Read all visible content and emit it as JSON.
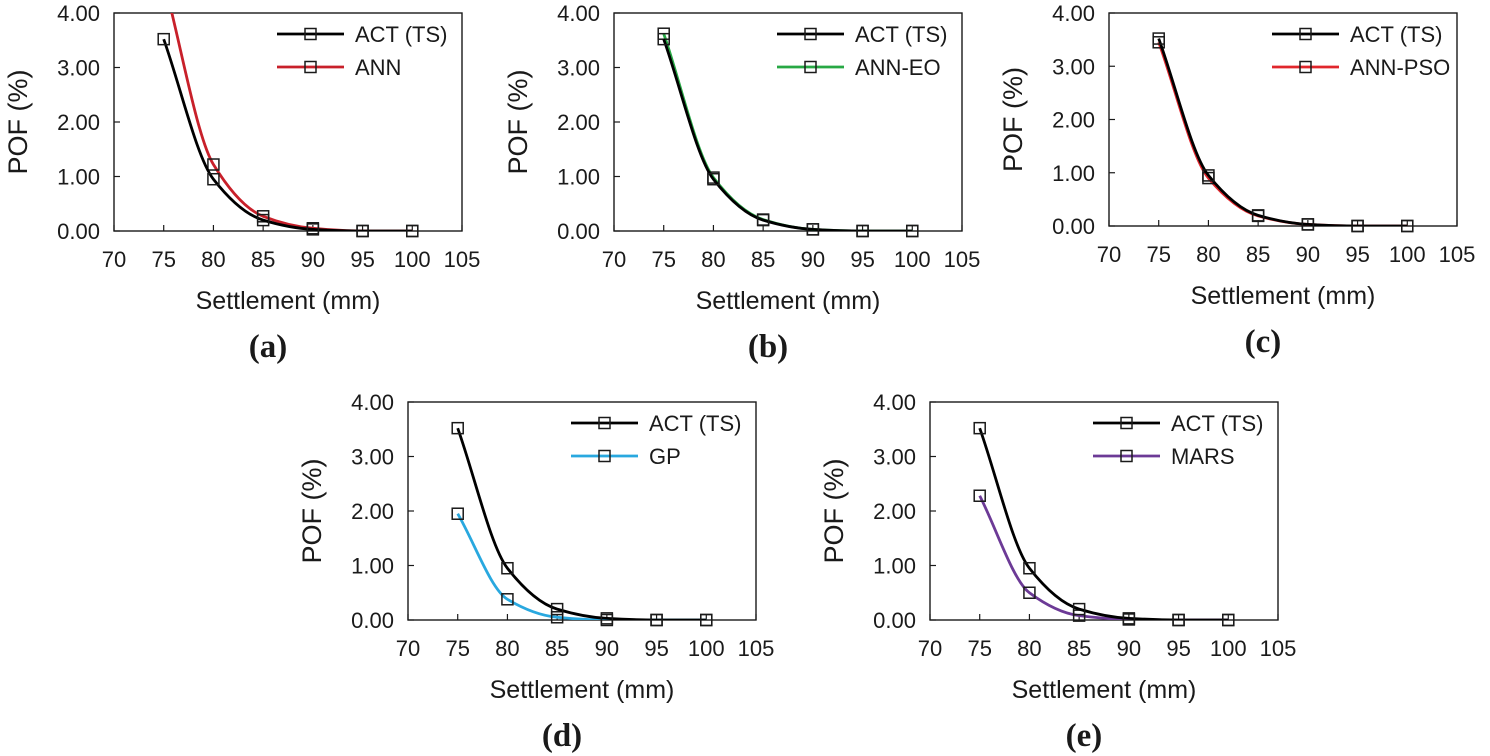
{
  "chart_data": [
    {
      "panel": "(a)",
      "type": "line",
      "xlabel": "Settlement (mm)",
      "ylabel": "POF (%)",
      "xlim": [
        70,
        105
      ],
      "ylim": [
        0,
        4
      ],
      "xticks": [
        "70",
        "75",
        "80",
        "85",
        "90",
        "95",
        "100",
        "105"
      ],
      "yticks": [
        "0.00",
        "1.00",
        "2.00",
        "3.00",
        "4.00"
      ],
      "legend_position": "top-right",
      "x": [
        75,
        80,
        85,
        90,
        95,
        100
      ],
      "series": [
        {
          "name": "ACT (TS)",
          "color": "#000000",
          "values": [
            3.52,
            0.95,
            0.2,
            0.03,
            0.0,
            0.0
          ]
        },
        {
          "name": "ANN",
          "color": "#c8202a",
          "values": [
            4.6,
            1.22,
            0.27,
            0.05,
            0.0,
            0.0
          ]
        }
      ]
    },
    {
      "panel": "(b)",
      "type": "line",
      "xlabel": "Settlement (mm)",
      "ylabel": "POF (%)",
      "xlim": [
        70,
        105
      ],
      "ylim": [
        0,
        4
      ],
      "xticks": [
        "70",
        "75",
        "80",
        "85",
        "90",
        "95",
        "100",
        "105"
      ],
      "yticks": [
        "0.00",
        "1.00",
        "2.00",
        "3.00",
        "4.00"
      ],
      "legend_position": "top-right",
      "x": [
        75,
        80,
        85,
        90,
        95,
        100
      ],
      "series": [
        {
          "name": "ACT (TS)",
          "color": "#000000",
          "values": [
            3.52,
            0.95,
            0.2,
            0.03,
            0.0,
            0.0
          ]
        },
        {
          "name": "ANN-EO",
          "color": "#27a844",
          "values": [
            3.62,
            0.98,
            0.21,
            0.03,
            0.0,
            0.0
          ]
        }
      ]
    },
    {
      "panel": "(c)",
      "type": "line",
      "xlabel": "Settlement (mm)",
      "ylabel": "POF (%)",
      "xlim": [
        70,
        105
      ],
      "ylim": [
        0,
        4
      ],
      "xticks": [
        "70",
        "75",
        "80",
        "85",
        "90",
        "95",
        "100",
        "105"
      ],
      "yticks": [
        "0.00",
        "1.00",
        "2.00",
        "3.00",
        "4.00"
      ],
      "legend_position": "top-right",
      "x": [
        75,
        80,
        85,
        90,
        95,
        100
      ],
      "series": [
        {
          "name": "ACT (TS)",
          "color": "#000000",
          "values": [
            3.52,
            0.95,
            0.2,
            0.03,
            0.0,
            0.0
          ]
        },
        {
          "name": "ANN-PSO",
          "color": "#e0262c",
          "values": [
            3.45,
            0.9,
            0.19,
            0.03,
            0.0,
            0.0
          ]
        }
      ]
    },
    {
      "panel": "(d)",
      "type": "line",
      "xlabel": "Settlement (mm)",
      "ylabel": "POF (%)",
      "xlim": [
        70,
        105
      ],
      "ylim": [
        0,
        4
      ],
      "xticks": [
        "70",
        "75",
        "80",
        "85",
        "90",
        "95",
        "100",
        "105"
      ],
      "yticks": [
        "0.00",
        "1.00",
        "2.00",
        "3.00",
        "4.00"
      ],
      "legend_position": "top-right",
      "x": [
        75,
        80,
        85,
        90,
        95,
        100
      ],
      "series": [
        {
          "name": "ACT (TS)",
          "color": "#000000",
          "values": [
            3.52,
            0.95,
            0.2,
            0.03,
            0.0,
            0.0
          ]
        },
        {
          "name": "GP",
          "color": "#29a8df",
          "values": [
            1.95,
            0.38,
            0.05,
            0.0,
            0.0,
            0.0
          ]
        }
      ]
    },
    {
      "panel": "(e)",
      "type": "line",
      "xlabel": "Settlement (mm)",
      "ylabel": "POF (%)",
      "xlim": [
        70,
        105
      ],
      "ylim": [
        0,
        4
      ],
      "xticks": [
        "70",
        "75",
        "80",
        "85",
        "90",
        "95",
        "100",
        "105"
      ],
      "yticks": [
        "0.00",
        "1.00",
        "2.00",
        "3.00",
        "4.00"
      ],
      "legend_position": "top-right",
      "x": [
        75,
        80,
        85,
        90,
        95,
        100
      ],
      "series": [
        {
          "name": "ACT (TS)",
          "color": "#000000",
          "values": [
            3.52,
            0.95,
            0.2,
            0.03,
            0.0,
            0.0
          ]
        },
        {
          "name": "MARS",
          "color": "#6c3a96",
          "values": [
            2.28,
            0.5,
            0.08,
            0.01,
            0.0,
            0.0
          ]
        }
      ]
    }
  ]
}
